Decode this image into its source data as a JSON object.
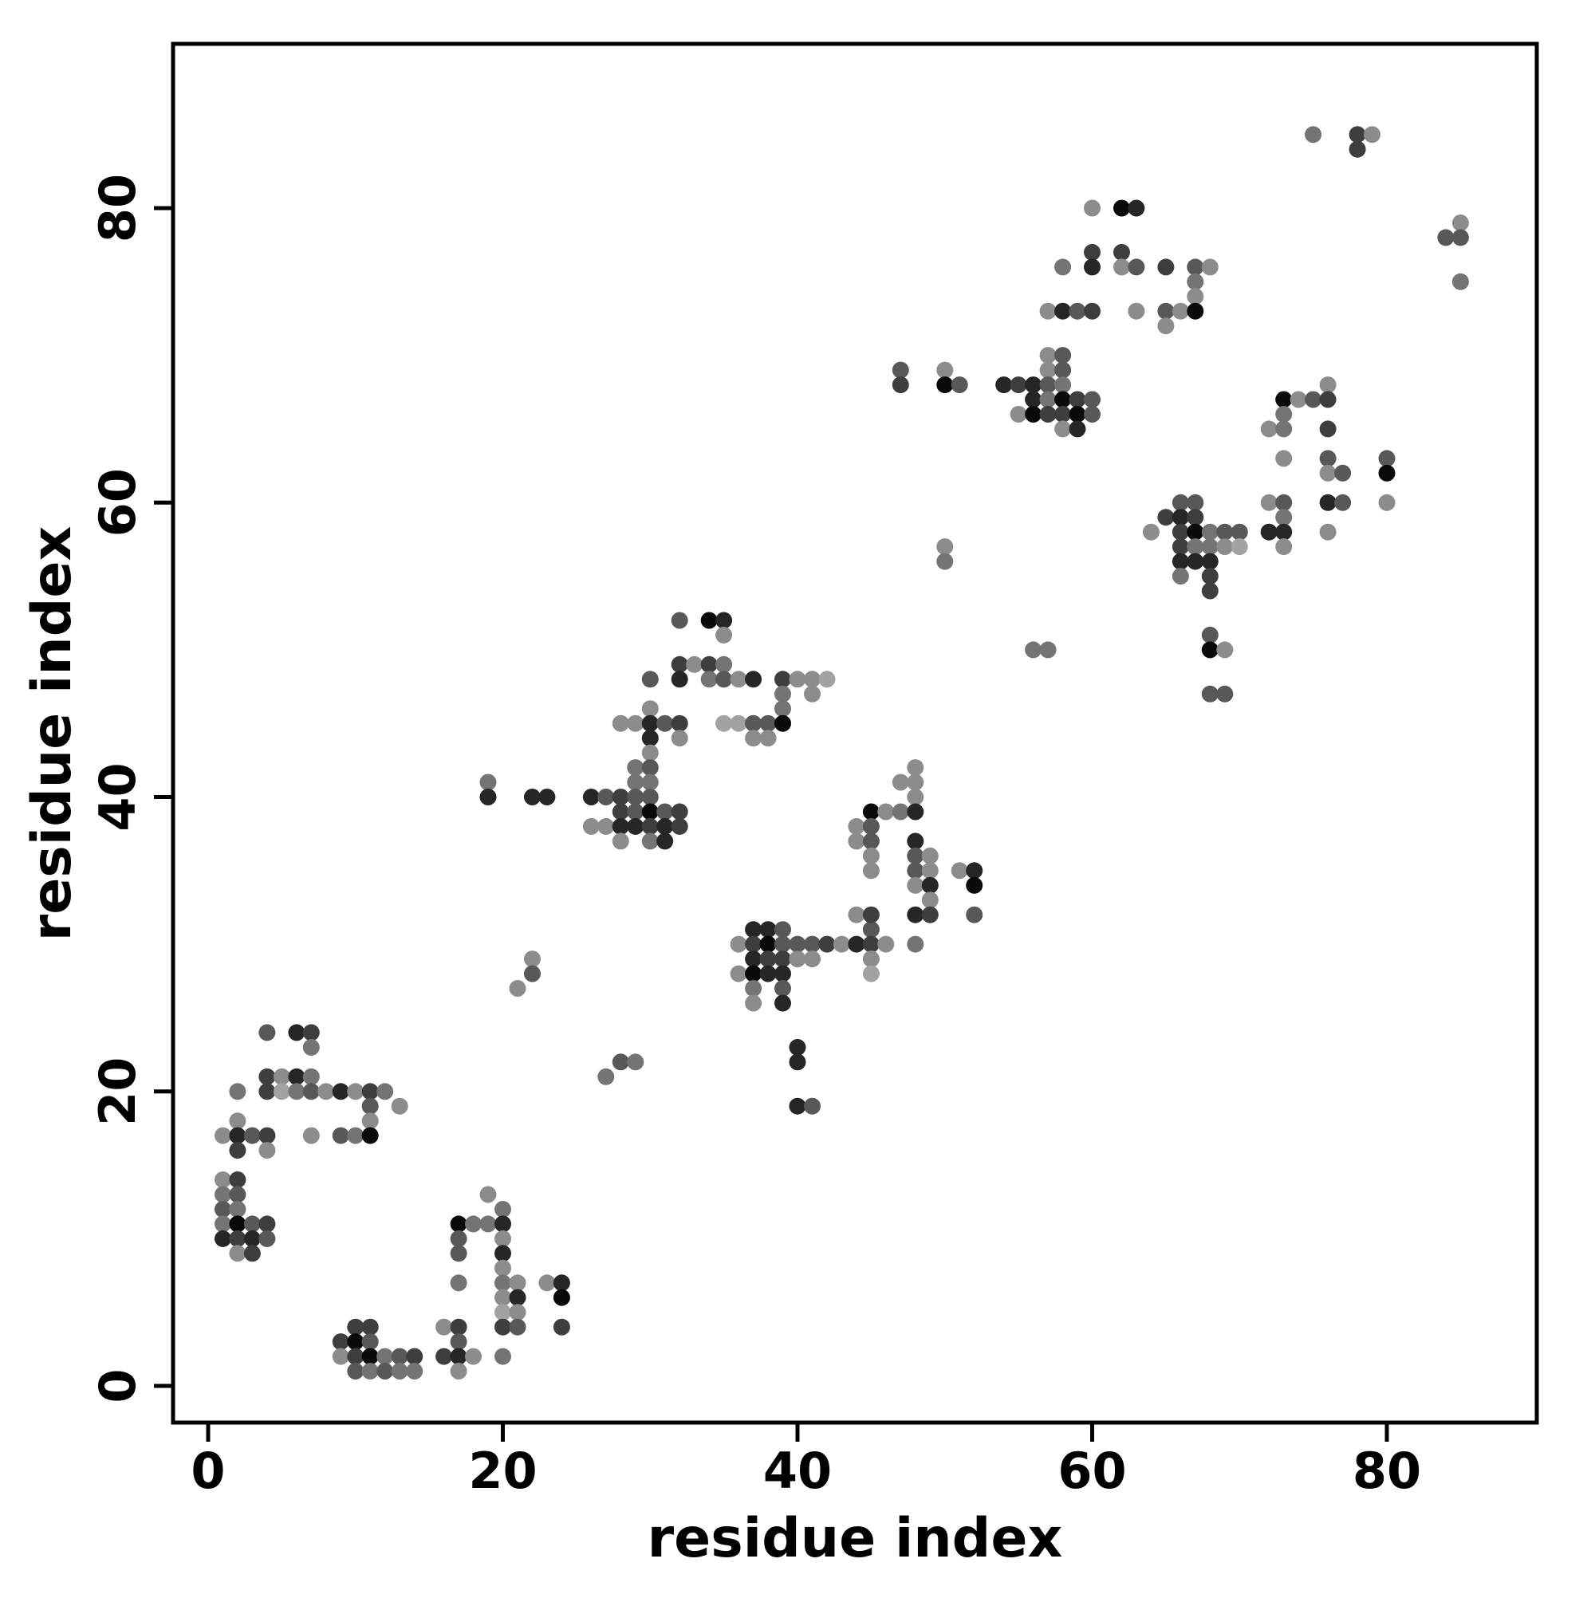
{
  "chart_data": {
    "type": "scatter",
    "title": "",
    "xlabel": "residue index",
    "ylabel": "residue index",
    "xlim": [
      -2.4,
      90.2
    ],
    "ylim": [
      -2.5,
      91.1
    ],
    "xticks": [
      0,
      20,
      40,
      60,
      80
    ],
    "yticks": [
      0,
      20,
      40,
      60,
      80
    ],
    "grid": false,
    "legend": "none",
    "marker": "filled-circle",
    "background": "#ffffff",
    "box_color": "#000000",
    "shade_palette": {
      "l": "#a2a2a2",
      "lm": "#8c8c8c",
      "m": "#747474",
      "md": "#585858",
      "d": "#3e3e3e",
      "vd": "#262626",
      "b": "#0a0a0a"
    },
    "points": [
      [
        4,
        24,
        "md"
      ],
      [
        6,
        24,
        "vd"
      ],
      [
        7,
        24,
        "d"
      ],
      [
        7,
        23,
        "m"
      ],
      [
        4,
        21,
        "d"
      ],
      [
        5,
        21,
        "lm"
      ],
      [
        6,
        21,
        "vd"
      ],
      [
        7,
        21,
        "m"
      ],
      [
        2,
        20,
        "m"
      ],
      [
        4,
        20,
        "d"
      ],
      [
        5,
        20,
        "l"
      ],
      [
        6,
        20,
        "m"
      ],
      [
        7,
        20,
        "md"
      ],
      [
        8,
        20,
        "lm"
      ],
      [
        9,
        20,
        "vd"
      ],
      [
        10,
        20,
        "lm"
      ],
      [
        11,
        20,
        "d"
      ],
      [
        12,
        20,
        "m"
      ],
      [
        11,
        19,
        "md"
      ],
      [
        13,
        19,
        "lm"
      ],
      [
        2,
        18,
        "lm"
      ],
      [
        11,
        18,
        "lm"
      ],
      [
        1,
        17,
        "lm"
      ],
      [
        2,
        17,
        "vd"
      ],
      [
        3,
        17,
        "md"
      ],
      [
        4,
        17,
        "d"
      ],
      [
        7,
        17,
        "lm"
      ],
      [
        9,
        17,
        "md"
      ],
      [
        10,
        17,
        "m"
      ],
      [
        11,
        17,
        "b"
      ],
      [
        2,
        16,
        "d"
      ],
      [
        4,
        16,
        "lm"
      ],
      [
        1,
        14,
        "lm"
      ],
      [
        2,
        14,
        "d"
      ],
      [
        1,
        13,
        "m"
      ],
      [
        2,
        13,
        "md"
      ],
      [
        1,
        12,
        "md"
      ],
      [
        2,
        12,
        "m"
      ],
      [
        1,
        11,
        "m"
      ],
      [
        2,
        11,
        "b"
      ],
      [
        3,
        11,
        "md"
      ],
      [
        4,
        11,
        "d"
      ],
      [
        1,
        10,
        "vd"
      ],
      [
        2,
        10,
        "d"
      ],
      [
        3,
        10,
        "vd"
      ],
      [
        4,
        10,
        "md"
      ],
      [
        2,
        9,
        "lm"
      ],
      [
        3,
        9,
        "d"
      ],
      [
        10,
        4,
        "d"
      ],
      [
        11,
        4,
        "d"
      ],
      [
        9,
        3,
        "d"
      ],
      [
        10,
        3,
        "b"
      ],
      [
        11,
        3,
        "md"
      ],
      [
        9,
        2,
        "lm"
      ],
      [
        10,
        2,
        "d"
      ],
      [
        11,
        2,
        "b"
      ],
      [
        12,
        2,
        "m"
      ],
      [
        13,
        2,
        "md"
      ],
      [
        14,
        2,
        "d"
      ],
      [
        10,
        1,
        "md"
      ],
      [
        11,
        1,
        "m"
      ],
      [
        12,
        1,
        "md"
      ],
      [
        13,
        1,
        "m"
      ],
      [
        14,
        1,
        "m"
      ],
      [
        19,
        13,
        "lm"
      ],
      [
        20,
        12,
        "m"
      ],
      [
        17,
        11,
        "b"
      ],
      [
        18,
        11,
        "m"
      ],
      [
        19,
        11,
        "m"
      ],
      [
        20,
        11,
        "vd"
      ],
      [
        17,
        10,
        "md"
      ],
      [
        20,
        10,
        "lm"
      ],
      [
        17,
        9,
        "md"
      ],
      [
        20,
        9,
        "vd"
      ],
      [
        20,
        8,
        "lm"
      ],
      [
        17,
        7,
        "m"
      ],
      [
        20,
        7,
        "m"
      ],
      [
        21,
        7,
        "lm"
      ],
      [
        23,
        7,
        "lm"
      ],
      [
        24,
        7,
        "vd"
      ],
      [
        20,
        6,
        "lm"
      ],
      [
        21,
        6,
        "vd"
      ],
      [
        24,
        6,
        "b"
      ],
      [
        20,
        5,
        "l"
      ],
      [
        21,
        5,
        "lm"
      ],
      [
        16,
        4,
        "lm"
      ],
      [
        17,
        4,
        "d"
      ],
      [
        20,
        4,
        "d"
      ],
      [
        21,
        4,
        "md"
      ],
      [
        24,
        4,
        "d"
      ],
      [
        17,
        3,
        "md"
      ],
      [
        16,
        2,
        "d"
      ],
      [
        17,
        2,
        "vd"
      ],
      [
        18,
        2,
        "lm"
      ],
      [
        20,
        2,
        "m"
      ],
      [
        17,
        1,
        "lm"
      ],
      [
        22,
        29,
        "lm"
      ],
      [
        22,
        28,
        "md"
      ],
      [
        21,
        27,
        "lm"
      ],
      [
        28,
        22,
        "md"
      ],
      [
        29,
        22,
        "m"
      ],
      [
        27,
        21,
        "m"
      ],
      [
        40,
        23,
        "vd"
      ],
      [
        40,
        22,
        "vd"
      ],
      [
        40,
        19,
        "vd"
      ],
      [
        41,
        19,
        "md"
      ],
      [
        19,
        41,
        "m"
      ],
      [
        19,
        40,
        "vd"
      ],
      [
        22,
        40,
        "vd"
      ],
      [
        23,
        40,
        "vd"
      ],
      [
        32,
        52,
        "md"
      ],
      [
        34,
        52,
        "b"
      ],
      [
        35,
        52,
        "vd"
      ],
      [
        35,
        51,
        "lm"
      ],
      [
        32,
        49,
        "d"
      ],
      [
        33,
        49,
        "lm"
      ],
      [
        34,
        49,
        "d"
      ],
      [
        35,
        49,
        "m"
      ],
      [
        30,
        48,
        "md"
      ],
      [
        32,
        48,
        "vd"
      ],
      [
        34,
        48,
        "m"
      ],
      [
        35,
        48,
        "md"
      ],
      [
        36,
        48,
        "lm"
      ],
      [
        37,
        48,
        "vd"
      ],
      [
        39,
        48,
        "d"
      ],
      [
        40,
        48,
        "lm"
      ],
      [
        41,
        48,
        "lm"
      ],
      [
        42,
        48,
        "l"
      ],
      [
        39,
        47,
        "m"
      ],
      [
        41,
        47,
        "lm"
      ],
      [
        30,
        46,
        "lm"
      ],
      [
        39,
        46,
        "m"
      ],
      [
        28,
        45,
        "lm"
      ],
      [
        29,
        45,
        "lm"
      ],
      [
        30,
        45,
        "vd"
      ],
      [
        31,
        45,
        "md"
      ],
      [
        32,
        45,
        "d"
      ],
      [
        35,
        45,
        "l"
      ],
      [
        36,
        45,
        "l"
      ],
      [
        37,
        45,
        "md"
      ],
      [
        38,
        45,
        "md"
      ],
      [
        39,
        45,
        "b"
      ],
      [
        30,
        44,
        "vd"
      ],
      [
        32,
        44,
        "lm"
      ],
      [
        37,
        44,
        "lm"
      ],
      [
        38,
        44,
        "lm"
      ],
      [
        30,
        43,
        "lm"
      ],
      [
        29,
        42,
        "m"
      ],
      [
        30,
        42,
        "md"
      ],
      [
        29,
        41,
        "m"
      ],
      [
        30,
        41,
        "m"
      ],
      [
        26,
        40,
        "vd"
      ],
      [
        27,
        40,
        "md"
      ],
      [
        28,
        40,
        "d"
      ],
      [
        29,
        40,
        "md"
      ],
      [
        30,
        40,
        "md"
      ],
      [
        28,
        39,
        "d"
      ],
      [
        29,
        39,
        "md"
      ],
      [
        30,
        39,
        "b"
      ],
      [
        31,
        39,
        "md"
      ],
      [
        32,
        39,
        "d"
      ],
      [
        26,
        38,
        "lm"
      ],
      [
        27,
        38,
        "lm"
      ],
      [
        28,
        38,
        "vd"
      ],
      [
        29,
        38,
        "vd"
      ],
      [
        30,
        38,
        "d"
      ],
      [
        31,
        38,
        "vd"
      ],
      [
        32,
        38,
        "d"
      ],
      [
        28,
        37,
        "lm"
      ],
      [
        30,
        37,
        "m"
      ],
      [
        31,
        37,
        "vd"
      ],
      [
        37,
        31,
        "vd"
      ],
      [
        38,
        31,
        "vd"
      ],
      [
        39,
        31,
        "md"
      ],
      [
        45,
        31,
        "md"
      ],
      [
        36,
        30,
        "lm"
      ],
      [
        37,
        30,
        "d"
      ],
      [
        38,
        30,
        "b"
      ],
      [
        39,
        30,
        "md"
      ],
      [
        40,
        30,
        "md"
      ],
      [
        41,
        30,
        "md"
      ],
      [
        42,
        30,
        "d"
      ],
      [
        43,
        30,
        "lm"
      ],
      [
        44,
        30,
        "vd"
      ],
      [
        45,
        30,
        "d"
      ],
      [
        46,
        30,
        "lm"
      ],
      [
        48,
        30,
        "m"
      ],
      [
        37,
        29,
        "vd"
      ],
      [
        38,
        29,
        "d"
      ],
      [
        39,
        29,
        "d"
      ],
      [
        40,
        29,
        "lm"
      ],
      [
        41,
        29,
        "lm"
      ],
      [
        45,
        29,
        "lm"
      ],
      [
        36,
        28,
        "lm"
      ],
      [
        37,
        28,
        "b"
      ],
      [
        38,
        28,
        "vd"
      ],
      [
        39,
        28,
        "vd"
      ],
      [
        45,
        28,
        "l"
      ],
      [
        37,
        27,
        "m"
      ],
      [
        39,
        27,
        "md"
      ],
      [
        37,
        26,
        "lm"
      ],
      [
        39,
        26,
        "vd"
      ],
      [
        48,
        42,
        "lm"
      ],
      [
        47,
        41,
        "lm"
      ],
      [
        48,
        41,
        "lm"
      ],
      [
        48,
        40,
        "lm"
      ],
      [
        45,
        39,
        "b"
      ],
      [
        46,
        39,
        "lm"
      ],
      [
        47,
        39,
        "m"
      ],
      [
        48,
        39,
        "vd"
      ],
      [
        44,
        38,
        "lm"
      ],
      [
        45,
        38,
        "md"
      ],
      [
        44,
        37,
        "lm"
      ],
      [
        45,
        37,
        "md"
      ],
      [
        48,
        37,
        "vd"
      ],
      [
        45,
        36,
        "lm"
      ],
      [
        48,
        36,
        "md"
      ],
      [
        49,
        36,
        "lm"
      ],
      [
        45,
        35,
        "lm"
      ],
      [
        48,
        35,
        "md"
      ],
      [
        49,
        35,
        "lm"
      ],
      [
        51,
        35,
        "lm"
      ],
      [
        52,
        35,
        "vd"
      ],
      [
        48,
        34,
        "lm"
      ],
      [
        49,
        34,
        "vd"
      ],
      [
        52,
        34,
        "b"
      ],
      [
        49,
        33,
        "lm"
      ],
      [
        48,
        32,
        "vd"
      ],
      [
        49,
        32,
        "d"
      ],
      [
        52,
        32,
        "md"
      ],
      [
        44,
        32,
        "lm"
      ],
      [
        45,
        32,
        "d"
      ],
      [
        50,
        57,
        "lm"
      ],
      [
        50,
        56,
        "m"
      ],
      [
        56,
        50,
        "m"
      ],
      [
        57,
        50,
        "m"
      ],
      [
        47,
        69,
        "md"
      ],
      [
        47,
        68,
        "d"
      ],
      [
        50,
        69,
        "lm"
      ],
      [
        50,
        68,
        "b"
      ],
      [
        51,
        68,
        "md"
      ],
      [
        57,
        70,
        "lm"
      ],
      [
        58,
        70,
        "md"
      ],
      [
        57,
        69,
        "lm"
      ],
      [
        58,
        69,
        "md"
      ],
      [
        54,
        68,
        "vd"
      ],
      [
        55,
        68,
        "d"
      ],
      [
        56,
        68,
        "vd"
      ],
      [
        57,
        68,
        "md"
      ],
      [
        58,
        68,
        "m"
      ],
      [
        56,
        67,
        "vd"
      ],
      [
        57,
        67,
        "m"
      ],
      [
        58,
        67,
        "b"
      ],
      [
        59,
        67,
        "d"
      ],
      [
        60,
        67,
        "md"
      ],
      [
        55,
        66,
        "lm"
      ],
      [
        56,
        66,
        "b"
      ],
      [
        57,
        66,
        "d"
      ],
      [
        58,
        66,
        "d"
      ],
      [
        59,
        66,
        "b"
      ],
      [
        60,
        66,
        "md"
      ],
      [
        58,
        65,
        "lm"
      ],
      [
        59,
        65,
        "vd"
      ],
      [
        60,
        80,
        "lm"
      ],
      [
        62,
        80,
        "b"
      ],
      [
        63,
        80,
        "vd"
      ],
      [
        60,
        77,
        "d"
      ],
      [
        62,
        77,
        "d"
      ],
      [
        58,
        76,
        "m"
      ],
      [
        60,
        76,
        "vd"
      ],
      [
        62,
        76,
        "lm"
      ],
      [
        63,
        76,
        "md"
      ],
      [
        65,
        76,
        "d"
      ],
      [
        67,
        76,
        "md"
      ],
      [
        68,
        76,
        "lm"
      ],
      [
        67,
        75,
        "m"
      ],
      [
        67,
        74,
        "lm"
      ],
      [
        57,
        73,
        "lm"
      ],
      [
        58,
        73,
        "vd"
      ],
      [
        59,
        73,
        "md"
      ],
      [
        60,
        73,
        "d"
      ],
      [
        63,
        73,
        "lm"
      ],
      [
        65,
        73,
        "md"
      ],
      [
        66,
        73,
        "lm"
      ],
      [
        67,
        73,
        "b"
      ],
      [
        65,
        72,
        "lm"
      ],
      [
        73,
        63,
        "lm"
      ],
      [
        66,
        60,
        "md"
      ],
      [
        67,
        60,
        "md"
      ],
      [
        72,
        60,
        "lm"
      ],
      [
        73,
        60,
        "md"
      ],
      [
        65,
        59,
        "d"
      ],
      [
        66,
        59,
        "vd"
      ],
      [
        67,
        59,
        "d"
      ],
      [
        73,
        59,
        "m"
      ],
      [
        64,
        58,
        "lm"
      ],
      [
        66,
        58,
        "d"
      ],
      [
        67,
        58,
        "b"
      ],
      [
        68,
        58,
        "m"
      ],
      [
        69,
        58,
        "md"
      ],
      [
        70,
        58,
        "md"
      ],
      [
        72,
        58,
        "vd"
      ],
      [
        73,
        58,
        "vd"
      ],
      [
        66,
        57,
        "d"
      ],
      [
        67,
        57,
        "m"
      ],
      [
        68,
        57,
        "m"
      ],
      [
        69,
        57,
        "lm"
      ],
      [
        70,
        57,
        "l"
      ],
      [
        73,
        57,
        "lm"
      ],
      [
        66,
        56,
        "vd"
      ],
      [
        67,
        56,
        "vd"
      ],
      [
        68,
        56,
        "vd"
      ],
      [
        66,
        55,
        "m"
      ],
      [
        68,
        55,
        "d"
      ],
      [
        68,
        54,
        "d"
      ],
      [
        68,
        51,
        "md"
      ],
      [
        68,
        50,
        "b"
      ],
      [
        69,
        50,
        "lm"
      ],
      [
        68,
        47,
        "md"
      ],
      [
        69,
        47,
        "md"
      ],
      [
        76,
        68,
        "lm"
      ],
      [
        73,
        67,
        "b"
      ],
      [
        74,
        67,
        "lm"
      ],
      [
        75,
        67,
        "md"
      ],
      [
        76,
        67,
        "d"
      ],
      [
        73,
        66,
        "m"
      ],
      [
        72,
        65,
        "lm"
      ],
      [
        73,
        65,
        "m"
      ],
      [
        76,
        65,
        "d"
      ],
      [
        76,
        63,
        "md"
      ],
      [
        80,
        63,
        "md"
      ],
      [
        76,
        62,
        "lm"
      ],
      [
        77,
        62,
        "md"
      ],
      [
        80,
        62,
        "b"
      ],
      [
        76,
        60,
        "vd"
      ],
      [
        77,
        60,
        "md"
      ],
      [
        80,
        60,
        "lm"
      ],
      [
        76,
        58,
        "lm"
      ],
      [
        75,
        85,
        "m"
      ],
      [
        78,
        85,
        "d"
      ],
      [
        79,
        85,
        "lm"
      ],
      [
        78,
        84,
        "d"
      ],
      [
        85,
        79,
        "lm"
      ],
      [
        84,
        78,
        "md"
      ],
      [
        85,
        78,
        "md"
      ],
      [
        85,
        75,
        "m"
      ]
    ]
  }
}
